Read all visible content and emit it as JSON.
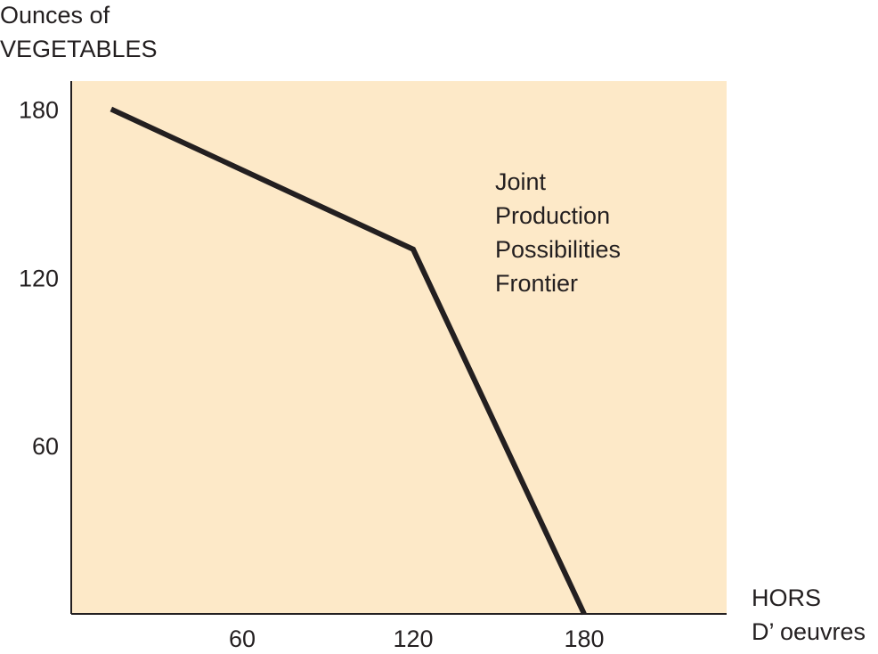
{
  "chart_data": {
    "type": "line",
    "title": "",
    "ylabel_lines": [
      "Ounces of",
      "VEGETABLES"
    ],
    "xlabel_lines": [
      "HORS",
      "D’ oeuvres"
    ],
    "annotation_lines": [
      "Joint",
      "Production",
      "Possibilities",
      "Frontier"
    ],
    "x_ticks": [
      60,
      120,
      180
    ],
    "x_tick_labels": [
      "60",
      "120",
      "180"
    ],
    "y_ticks": [
      60,
      120,
      180
    ],
    "y_tick_labels": [
      "60",
      "120",
      "180"
    ],
    "xlim": [
      0,
      230
    ],
    "ylim": [
      0,
      190
    ],
    "grid": false,
    "series": [
      {
        "x": [
          14,
          120,
          180
        ],
        "y": [
          180,
          130,
          0
        ]
      }
    ],
    "colors": {
      "plot_background": "#fde9c8",
      "line": "#231f20",
      "axes": "#231f20"
    }
  }
}
